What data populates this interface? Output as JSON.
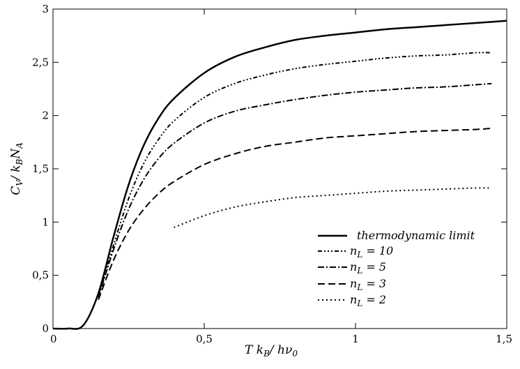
{
  "chart_data": {
    "type": "line",
    "xlim": [
      0,
      1.5
    ],
    "ylim": [
      0,
      3
    ],
    "x_ticks": [
      {
        "value": 0,
        "label": "0"
      },
      {
        "value": 0.5,
        "label": "0,5"
      },
      {
        "value": 1,
        "label": "1"
      },
      {
        "value": 1.5,
        "label": "1,5"
      }
    ],
    "y_ticks": [
      {
        "value": 0,
        "label": "0"
      },
      {
        "value": 0.5,
        "label": "0,5"
      },
      {
        "value": 1,
        "label": "1"
      },
      {
        "value": 1.5,
        "label": "1,5"
      },
      {
        "value": 2,
        "label": "2"
      },
      {
        "value": 2.5,
        "label": "2,5"
      },
      {
        "value": 3,
        "label": "3"
      }
    ],
    "xlabel": {
      "main_a": "T k",
      "sub_a": "B",
      "main_b": "/ hν",
      "sub_b": "0"
    },
    "ylabel": {
      "main_a": "C",
      "sub_a": "V",
      "main_b": "/ k",
      "sub_b": "B",
      "main_c": "N",
      "sub_c": "A"
    },
    "grid": false,
    "legend_position": "bottom-right",
    "series": [
      {
        "name": "thermodynamic limit",
        "legend": {
          "main": "thermodynamic limit",
          "sub": "",
          "rest": ""
        },
        "dash": "",
        "x": [
          0,
          0.05,
          0.1,
          0.15,
          0.2,
          0.25,
          0.3,
          0.35,
          0.4,
          0.5,
          0.6,
          0.7,
          0.8,
          0.9,
          1.0,
          1.1,
          1.2,
          1.3,
          1.4,
          1.5
        ],
        "y": [
          0,
          0,
          0.03,
          0.33,
          0.86,
          1.35,
          1.72,
          1.98,
          2.16,
          2.4,
          2.55,
          2.64,
          2.71,
          2.75,
          2.78,
          2.81,
          2.83,
          2.85,
          2.87,
          2.89
        ]
      },
      {
        "name": "n_L = 10",
        "legend": {
          "main": "n",
          "sub": "L",
          "rest": " = 10"
        },
        "dash": "6,3,2,3,2,3,2,3",
        "x": [
          0.15,
          0.2,
          0.25,
          0.3,
          0.35,
          0.4,
          0.5,
          0.6,
          0.7,
          0.8,
          0.9,
          1.0,
          1.1,
          1.2,
          1.3,
          1.4,
          1.45
        ],
        "y": [
          0.3,
          0.78,
          1.22,
          1.55,
          1.78,
          1.95,
          2.17,
          2.3,
          2.38,
          2.44,
          2.48,
          2.51,
          2.54,
          2.56,
          2.57,
          2.59,
          2.59
        ]
      },
      {
        "name": "n_L = 5",
        "legend": {
          "main": "n",
          "sub": "L",
          "rest": " = 5"
        },
        "dash": "9,3,2,3",
        "x": [
          0.15,
          0.2,
          0.25,
          0.3,
          0.35,
          0.4,
          0.5,
          0.6,
          0.7,
          0.8,
          0.9,
          1.0,
          1.1,
          1.2,
          1.3,
          1.4,
          1.45
        ],
        "y": [
          0.29,
          0.74,
          1.12,
          1.4,
          1.6,
          1.74,
          1.93,
          2.04,
          2.1,
          2.15,
          2.19,
          2.22,
          2.24,
          2.26,
          2.27,
          2.29,
          2.3
        ]
      },
      {
        "name": "n_L = 3",
        "legend": {
          "main": "n",
          "sub": "L",
          "rest": " = 3"
        },
        "dash": "10,5",
        "x": [
          0.15,
          0.2,
          0.25,
          0.3,
          0.35,
          0.4,
          0.5,
          0.6,
          0.7,
          0.8,
          0.9,
          1.0,
          1.1,
          1.2,
          1.3,
          1.4,
          1.45
        ],
        "y": [
          0.27,
          0.64,
          0.92,
          1.12,
          1.27,
          1.38,
          1.54,
          1.64,
          1.71,
          1.75,
          1.79,
          1.81,
          1.83,
          1.85,
          1.86,
          1.87,
          1.88
        ]
      },
      {
        "name": "n_L = 2",
        "legend": {
          "main": "n",
          "sub": "L",
          "rest": " = 2"
        },
        "dash": "2,4",
        "x": [
          0.4,
          0.5,
          0.6,
          0.7,
          0.8,
          0.9,
          1.0,
          1.1,
          1.2,
          1.3,
          1.4,
          1.45
        ],
        "y": [
          0.95,
          1.06,
          1.14,
          1.19,
          1.23,
          1.25,
          1.27,
          1.29,
          1.3,
          1.31,
          1.32,
          1.32
        ]
      }
    ]
  }
}
